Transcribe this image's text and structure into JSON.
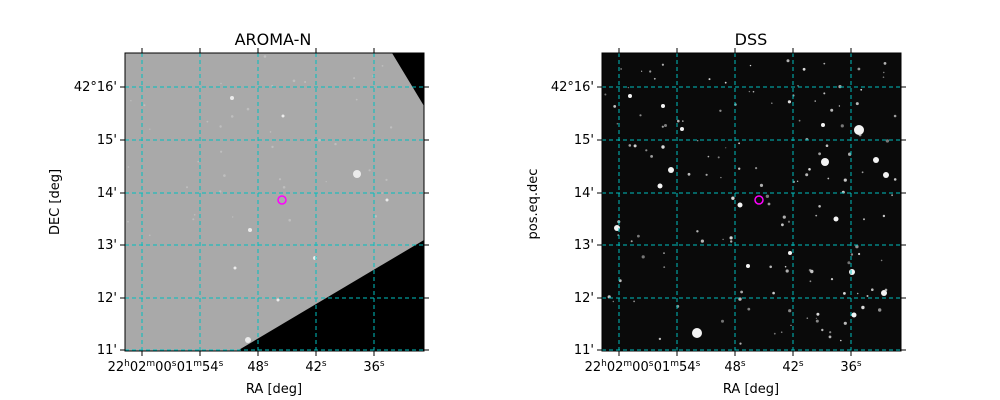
{
  "panels": [
    {
      "title": "AROMA-N",
      "xlabel": "RA [deg]",
      "ylabel": "DEC [deg]",
      "background": "#a9a9a9",
      "y_ticks": [
        {
          "deg": "42°16'"
        },
        {
          "deg": "15'"
        },
        {
          "deg": "14'"
        },
        {
          "deg": "13'"
        },
        {
          "deg": "12'"
        },
        {
          "deg": "11'"
        }
      ],
      "x_ticks": [
        {
          "h": "22",
          "m": "02",
          "s": "00"
        },
        {
          "s": "01",
          "m2": "m",
          "s2": "54"
        },
        {
          "s": "48"
        },
        {
          "s": "42"
        },
        {
          "s": "36"
        }
      ],
      "marker_color": "#ff00ff",
      "grid_color": "#00bfbf"
    },
    {
      "title": "DSS",
      "xlabel": "RA [deg]",
      "ylabel": "pos.eq.dec",
      "background": "#0a0a0a",
      "y_ticks": [
        {
          "deg": "42°16'"
        },
        {
          "deg": "15'"
        },
        {
          "deg": "14'"
        },
        {
          "deg": "13'"
        },
        {
          "deg": "12'"
        },
        {
          "deg": "11'"
        }
      ],
      "x_ticks": [
        {
          "h": "22",
          "m": "02",
          "s": "00"
        },
        {
          "s": "01",
          "m2": "m",
          "s2": "54"
        },
        {
          "s": "48"
        },
        {
          "s": "42"
        },
        {
          "s": "36"
        }
      ],
      "marker_color": "#ff00ff",
      "grid_color": "#00bfbf"
    }
  ]
}
